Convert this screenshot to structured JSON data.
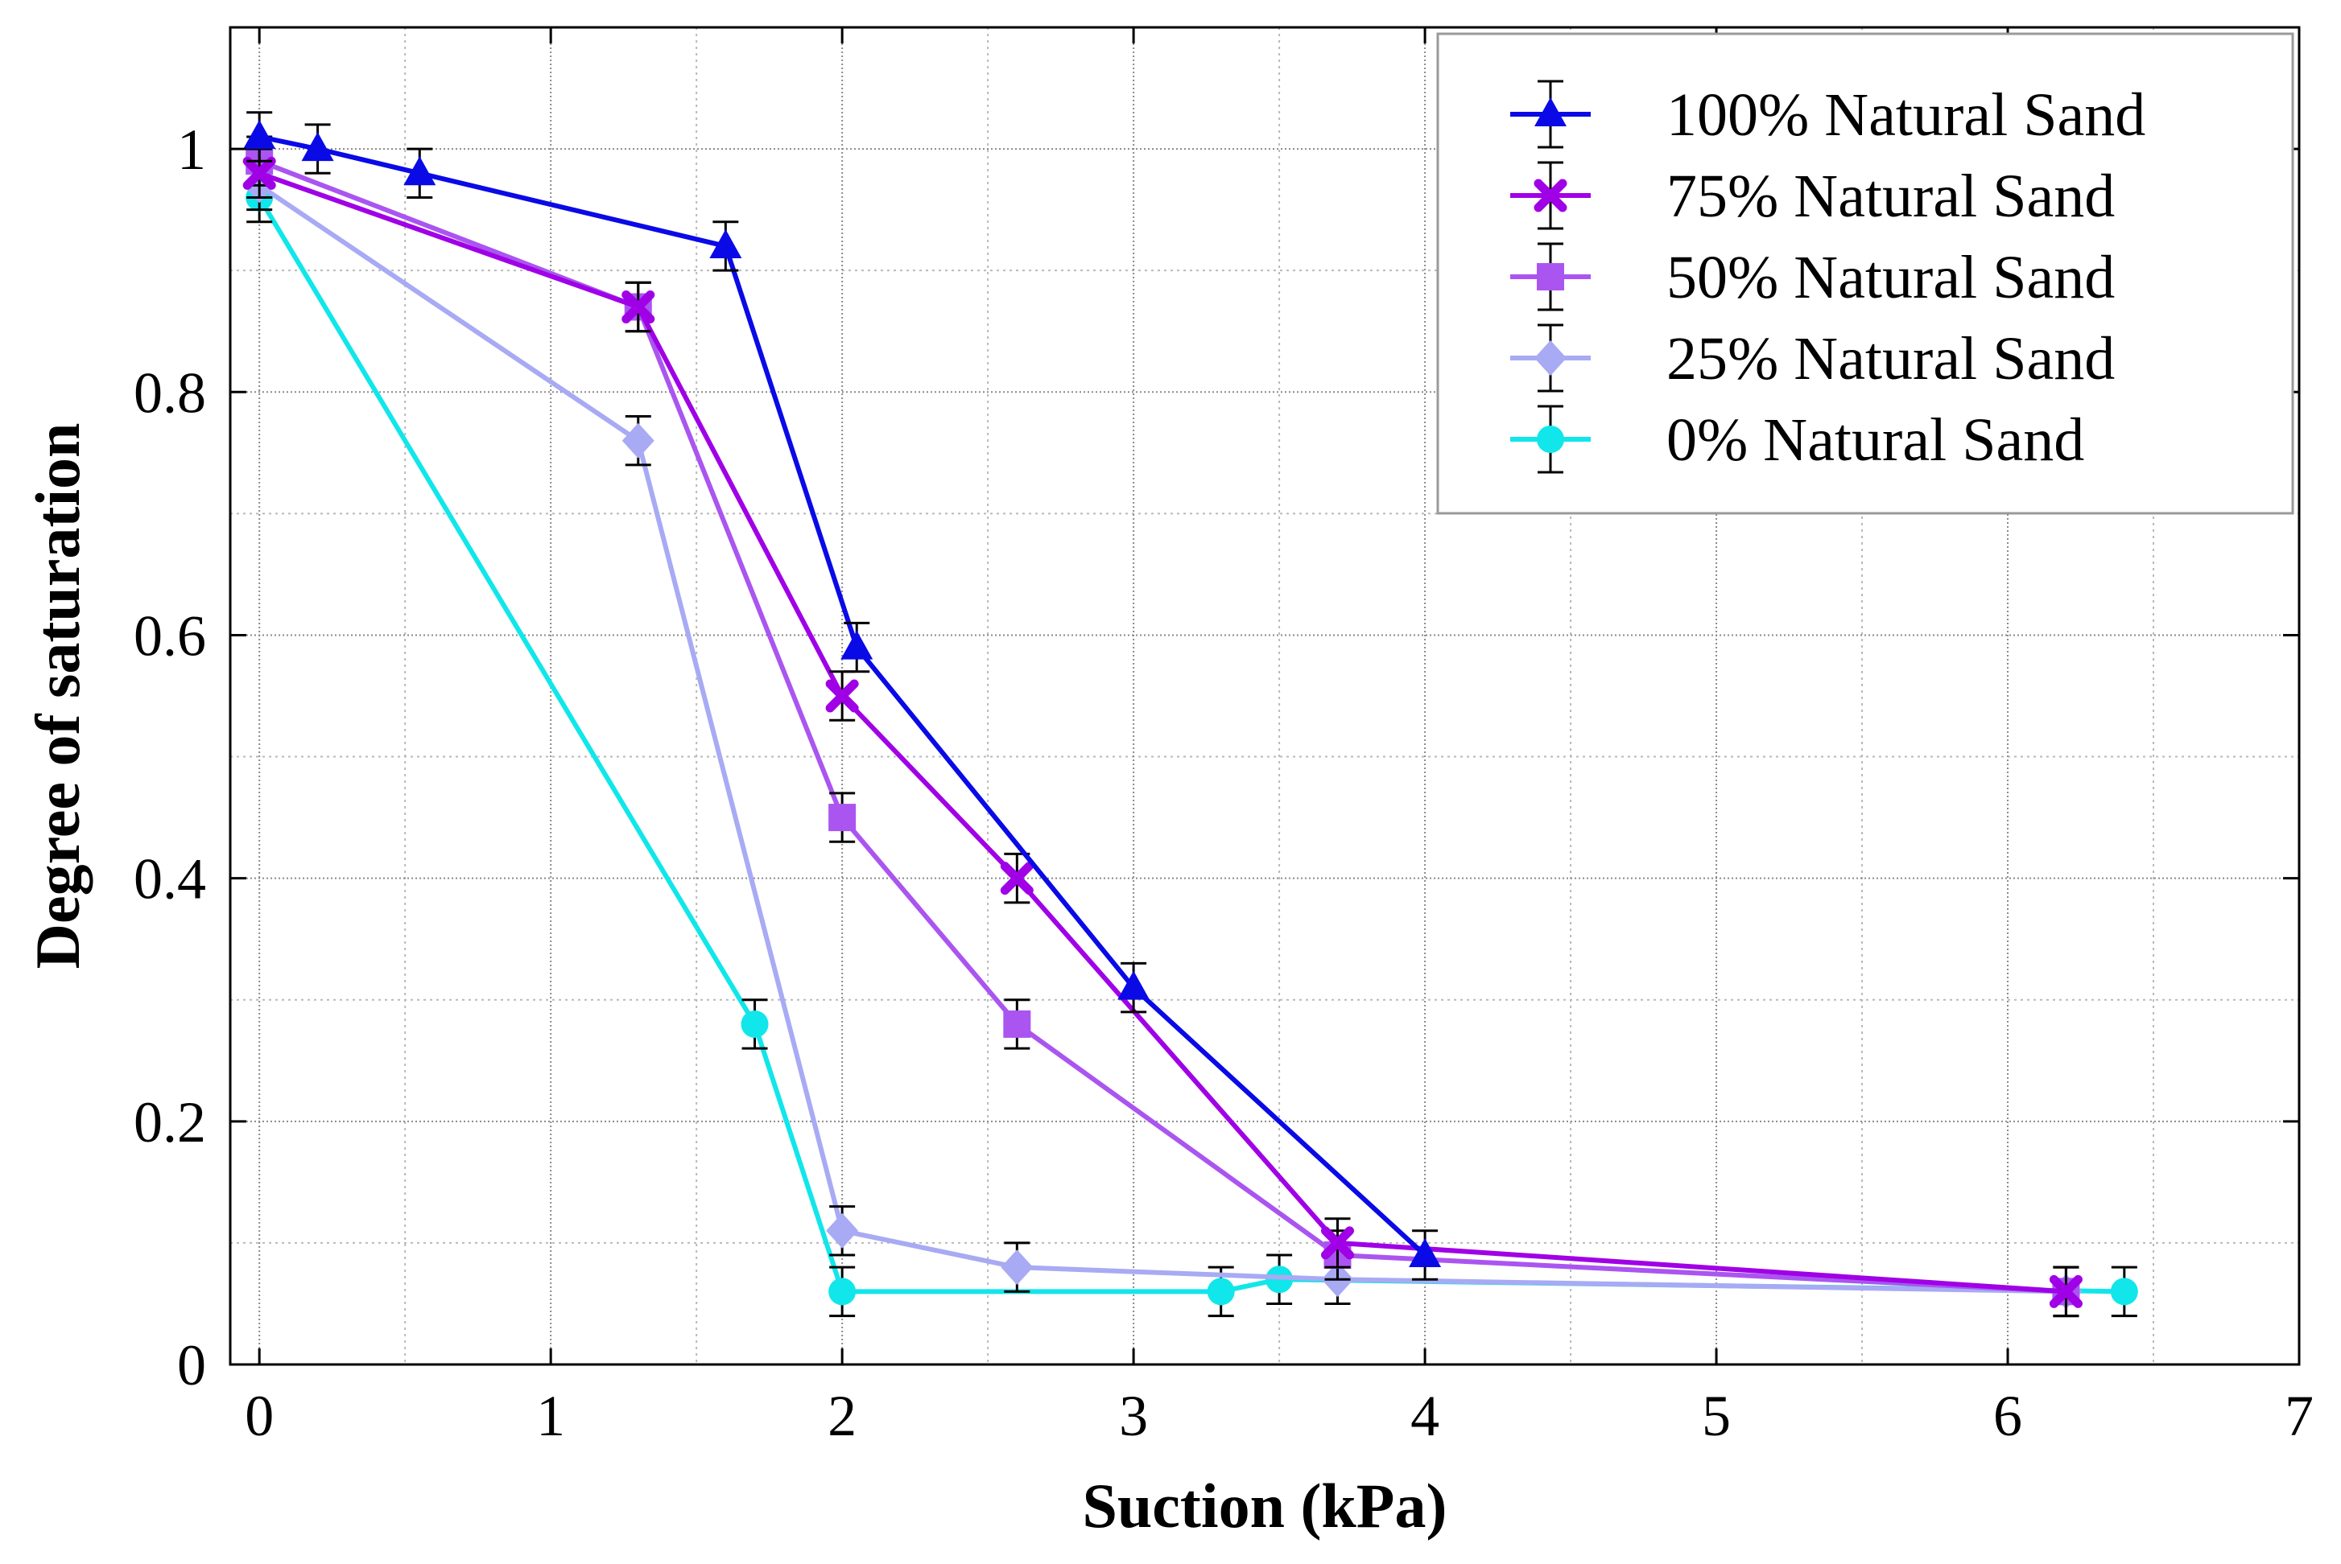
{
  "chart_data": {
    "type": "line",
    "title": "",
    "xlabel": "Suction (kPa)",
    "ylabel": "Degree of saturation",
    "xlim": [
      -0.1,
      7
    ],
    "ylim": [
      0,
      1.1
    ],
    "xticks": [
      0,
      1,
      2,
      3,
      4,
      5,
      6,
      7
    ],
    "xtick_labels": [
      "0",
      "1",
      "2",
      "3",
      "4",
      "5",
      "6",
      "7"
    ],
    "yticks": [
      0,
      0.2,
      0.4,
      0.6,
      0.8,
      1.0
    ],
    "ytick_labels": [
      "0",
      "0.2",
      "0.4",
      "0.6",
      "0.8",
      "1"
    ],
    "grid": "major solid and minor dotted, both axes",
    "error_bars": "symmetric y error bars on every point",
    "legend_position": "top-right",
    "series": [
      {
        "name": "100% Natural Sand",
        "color": "#0a0ae6",
        "marker": "triangle",
        "x": [
          0,
          0.2,
          0.55,
          1.6,
          2.05,
          3.0,
          4.0
        ],
        "y": [
          1.01,
          1.0,
          0.98,
          0.92,
          0.59,
          0.31,
          0.09
        ],
        "yerr": [
          0.02,
          0.02,
          0.02,
          0.02,
          0.02,
          0.02,
          0.02
        ]
      },
      {
        "name": "75% Natural Sand",
        "color": "#a000e6",
        "marker": "x",
        "x": [
          0,
          1.3,
          2.0,
          2.6,
          3.7,
          6.2
        ],
        "y": [
          0.98,
          0.87,
          0.55,
          0.4,
          0.1,
          0.06
        ],
        "yerr": [
          0.02,
          0.02,
          0.02,
          0.02,
          0.02,
          0.02
        ]
      },
      {
        "name": "50% Natural Sand",
        "color": "#aa55f0",
        "marker": "square",
        "x": [
          0,
          1.3,
          2.0,
          2.6,
          3.7,
          6.2
        ],
        "y": [
          0.99,
          0.87,
          0.45,
          0.28,
          0.09,
          0.06
        ],
        "yerr": [
          0.02,
          0.02,
          0.02,
          0.02,
          0.02,
          0.02
        ]
      },
      {
        "name": "25% Natural Sand",
        "color": "#a8aaf4",
        "marker": "diamond",
        "x": [
          0,
          1.3,
          2.0,
          2.6,
          3.7,
          6.2
        ],
        "y": [
          0.97,
          0.76,
          0.11,
          0.08,
          0.07,
          0.06
        ],
        "yerr": [
          0.02,
          0.02,
          0.02,
          0.02,
          0.02,
          0.02
        ]
      },
      {
        "name": "0% Natural Sand",
        "color": "#11e6ea",
        "marker": "circle",
        "x": [
          0,
          1.7,
          2.0,
          3.3,
          3.5,
          6.4
        ],
        "y": [
          0.96,
          0.28,
          0.06,
          0.06,
          0.07,
          0.06
        ],
        "yerr": [
          0.02,
          0.02,
          0.02,
          0.02,
          0.02,
          0.02
        ]
      }
    ]
  }
}
